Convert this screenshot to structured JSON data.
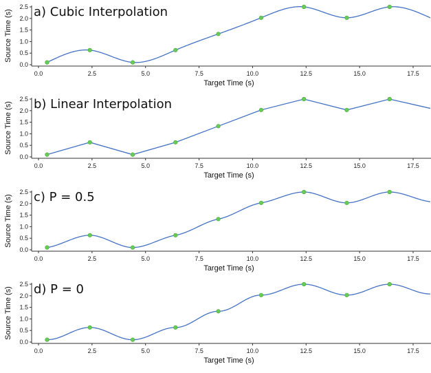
{
  "colors": {
    "line": "#4472c4",
    "marker": "#66cc55",
    "marker_edge": "#4aa83c",
    "axis": "#333333"
  },
  "chart_data": [
    {
      "type": "line",
      "title": "a) Cubic Interpolation",
      "xlabel": "Target Time (s)",
      "ylabel": "Source Time (s)",
      "xlim": [
        -0.3,
        18.3
      ],
      "ylim": [
        0,
        2.5
      ],
      "xticks": [
        "0.0",
        "2.5",
        "5.0",
        "7.5",
        "10.0",
        "12.5",
        "15.0",
        "17.5"
      ],
      "yticks": [
        "0.0",
        "0.5",
        "1.0",
        "1.5",
        "2.0",
        "2.5"
      ],
      "interpolation": "cubic",
      "points": {
        "x": [
          0.4,
          2.4,
          4.4,
          6.4,
          8.4,
          10.4,
          12.4,
          14.4,
          16.4
        ],
        "y": [
          0.1,
          0.63,
          0.1,
          0.63,
          1.33,
          2.03,
          2.5,
          2.03,
          2.5
        ]
      },
      "series": [
        {
          "x": [
            0.4,
            2.4,
            4.4,
            6.4,
            8.4,
            10.4,
            12.4,
            14.4,
            16.4,
            18.3
          ],
          "y": [
            0.1,
            0.63,
            0.1,
            0.63,
            1.33,
            2.03,
            2.5,
            2.03,
            2.5,
            2.03
          ]
        }
      ]
    },
    {
      "type": "line",
      "title": "b) Linear Interpolation",
      "xlabel": "Target Time (s)",
      "ylabel": "Source Time (s)",
      "xlim": [
        -0.3,
        18.3
      ],
      "ylim": [
        0,
        2.5
      ],
      "xticks": [
        "0.0",
        "2.5",
        "5.0",
        "7.5",
        "10.0",
        "12.5",
        "15.0",
        "17.5"
      ],
      "yticks": [
        "0.0",
        "0.5",
        "1.0",
        "1.5",
        "2.0",
        "2.5"
      ],
      "interpolation": "linear",
      "points": {
        "x": [
          0.4,
          2.4,
          4.4,
          6.4,
          8.4,
          10.4,
          12.4,
          14.4,
          16.4
        ],
        "y": [
          0.1,
          0.63,
          0.1,
          0.63,
          1.33,
          2.03,
          2.5,
          2.03,
          2.5
        ]
      },
      "series": [
        {
          "x": [
            0.4,
            2.4,
            4.4,
            6.4,
            8.4,
            10.4,
            12.4,
            14.4,
            16.4,
            18.3
          ],
          "y": [
            0.1,
            0.63,
            0.1,
            0.63,
            1.33,
            2.03,
            2.5,
            2.03,
            2.5,
            2.1
          ]
        }
      ]
    },
    {
      "type": "line",
      "title": "c) P = 0.5",
      "xlabel": "Target Time (s)",
      "ylabel": "Source Time (s)",
      "xlim": [
        -0.3,
        18.3
      ],
      "ylim": [
        0,
        2.5
      ],
      "xticks": [
        "0.0",
        "2.5",
        "5.0",
        "7.5",
        "10.0",
        "12.5",
        "15.0",
        "17.5"
      ],
      "yticks": [
        "0.0",
        "0.5",
        "1.0",
        "1.5",
        "2.0",
        "2.5"
      ],
      "interpolation": "P=0.5",
      "points": {
        "x": [
          0.4,
          2.4,
          4.4,
          6.4,
          8.4,
          10.4,
          12.4,
          14.4,
          16.4
        ],
        "y": [
          0.1,
          0.63,
          0.1,
          0.63,
          1.33,
          2.03,
          2.5,
          2.03,
          2.5
        ]
      },
      "series": [
        {
          "x": [
            0.4,
            2.4,
            4.4,
            6.4,
            8.4,
            10.4,
            12.4,
            14.4,
            16.4,
            18.3
          ],
          "y": [
            0.1,
            0.63,
            0.1,
            0.63,
            1.33,
            2.03,
            2.5,
            2.03,
            2.5,
            2.08
          ]
        }
      ]
    },
    {
      "type": "line",
      "title": "d) P = 0",
      "xlabel": "Target Time (s)",
      "ylabel": "Source Time (s)",
      "xlim": [
        -0.3,
        18.3
      ],
      "ylim": [
        0,
        2.5
      ],
      "xticks": [
        "0.0",
        "2.5",
        "5.0",
        "7.5",
        "10.0",
        "12.5",
        "15.0",
        "17.5"
      ],
      "yticks": [
        "0.0",
        "0.5",
        "1.0",
        "1.5",
        "2.0",
        "2.5"
      ],
      "interpolation": "P=0",
      "points": {
        "x": [
          0.4,
          2.4,
          4.4,
          6.4,
          8.4,
          10.4,
          12.4,
          14.4,
          16.4
        ],
        "y": [
          0.1,
          0.63,
          0.1,
          0.63,
          1.33,
          2.03,
          2.5,
          2.03,
          2.5
        ]
      },
      "series": [
        {
          "x": [
            0.4,
            2.4,
            4.4,
            6.4,
            8.4,
            10.4,
            12.4,
            14.4,
            16.4,
            18.3
          ],
          "y": [
            0.1,
            0.63,
            0.1,
            0.63,
            1.33,
            2.03,
            2.5,
            2.03,
            2.5,
            2.08
          ]
        }
      ]
    }
  ]
}
